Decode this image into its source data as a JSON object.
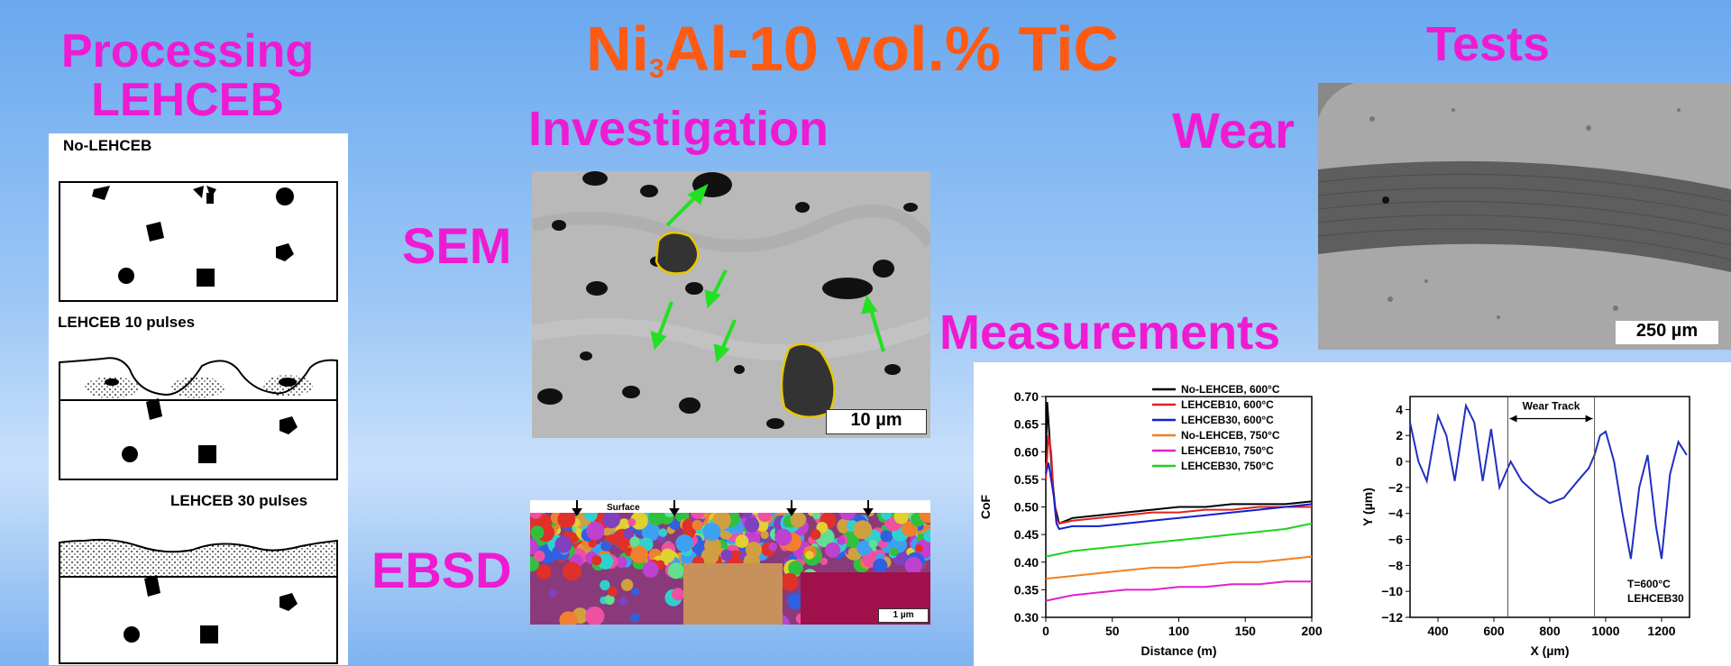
{
  "title": {
    "main_a": "Ni",
    "main_sub": "3",
    "main_b": "Al-10 vol.% TiC"
  },
  "headings": {
    "processing": "Processing",
    "lehceb": "LEHCEB",
    "investigation": "Investigation",
    "tests": "Tests",
    "sem": "SEM",
    "ebsd": "EBSD",
    "wear": "Wear",
    "measurements": "Measurements"
  },
  "schematic": {
    "no_lehceb": "No-LEHCEB",
    "lehceb10": "LEHCEB 10 pulses",
    "lehceb30": "LEHCEB 30 pulses"
  },
  "sem_scale": "10 µm",
  "ebsd": {
    "surface_label": "Surface",
    "scale": "1 µm"
  },
  "wear_scale": "250 µm",
  "colors": {
    "title": "#ff5a12",
    "headings": "#ee1bd3"
  },
  "chart_data": [
    {
      "type": "line",
      "xlabel": "Distance (m)",
      "ylabel": "CoF",
      "xlim": [
        0,
        200
      ],
      "ylim": [
        0.3,
        0.7
      ],
      "xticks": [
        0,
        50,
        100,
        150,
        200
      ],
      "yticks": [
        0.3,
        0.35,
        0.4,
        0.45,
        0.5,
        0.55,
        0.6,
        0.65,
        0.7
      ],
      "legend_position": "top-right",
      "series": [
        {
          "name": "No-LEHCEB, 600°C",
          "color": "#000000",
          "x": [
            0,
            1,
            3,
            5,
            7,
            10,
            20,
            40,
            60,
            80,
            100,
            120,
            140,
            160,
            180,
            200
          ],
          "y": [
            0.58,
            0.69,
            0.62,
            0.55,
            0.5,
            0.47,
            0.48,
            0.485,
            0.49,
            0.495,
            0.5,
            0.5,
            0.505,
            0.505,
            0.505,
            0.51
          ]
        },
        {
          "name": "LEHCEB10, 600°C",
          "color": "#e02020",
          "x": [
            0,
            2,
            4,
            6,
            8,
            10,
            20,
            40,
            60,
            80,
            100,
            120,
            140,
            160,
            180,
            200
          ],
          "y": [
            0.55,
            0.63,
            0.6,
            0.52,
            0.48,
            0.47,
            0.475,
            0.48,
            0.485,
            0.49,
            0.49,
            0.495,
            0.495,
            0.5,
            0.5,
            0.5
          ]
        },
        {
          "name": "LEHCEB30, 600°C",
          "color": "#1020d0",
          "x": [
            0,
            2,
            4,
            6,
            8,
            10,
            20,
            40,
            60,
            80,
            100,
            120,
            140,
            160,
            180,
            200
          ],
          "y": [
            0.56,
            0.58,
            0.55,
            0.52,
            0.47,
            0.46,
            0.465,
            0.465,
            0.47,
            0.475,
            0.48,
            0.485,
            0.49,
            0.495,
            0.5,
            0.505
          ]
        },
        {
          "name": "No-LEHCEB, 750°C",
          "color": "#f08020",
          "x": [
            0,
            20,
            40,
            60,
            80,
            100,
            120,
            140,
            160,
            180,
            200
          ],
          "y": [
            0.37,
            0.375,
            0.38,
            0.385,
            0.39,
            0.39,
            0.395,
            0.4,
            0.4,
            0.405,
            0.41
          ]
        },
        {
          "name": "LEHCEB10, 750°C",
          "color": "#e020d0",
          "x": [
            0,
            20,
            40,
            60,
            80,
            100,
            120,
            140,
            160,
            180,
            200
          ],
          "y": [
            0.33,
            0.34,
            0.345,
            0.35,
            0.35,
            0.355,
            0.355,
            0.36,
            0.36,
            0.365,
            0.365
          ]
        },
        {
          "name": "LEHCEB30, 750°C",
          "color": "#20d020",
          "x": [
            0,
            20,
            40,
            60,
            80,
            100,
            120,
            140,
            160,
            180,
            200
          ],
          "y": [
            0.41,
            0.42,
            0.425,
            0.43,
            0.435,
            0.44,
            0.445,
            0.45,
            0.455,
            0.46,
            0.47
          ]
        }
      ]
    },
    {
      "type": "line",
      "xlabel": "X (µm)",
      "ylabel": "Y (µm)",
      "xlim": [
        300,
        1300
      ],
      "ylim": [
        -12,
        5
      ],
      "xticks": [
        400,
        600,
        800,
        1000,
        1200
      ],
      "yticks": [
        4,
        2,
        0,
        -2,
        -4,
        -6,
        -8,
        -10,
        -12
      ],
      "annotation": "Wear Track",
      "track_bounds": [
        650,
        960
      ],
      "note_lines": [
        "T=600°C",
        "LEHCEB30"
      ],
      "series": [
        {
          "name": "",
          "color": "#2030c0",
          "x": [
            300,
            330,
            360,
            400,
            430,
            460,
            500,
            530,
            560,
            590,
            620,
            660,
            700,
            750,
            800,
            850,
            900,
            940,
            960,
            980,
            1000,
            1030,
            1060,
            1090,
            1120,
            1150,
            1180,
            1200,
            1230,
            1260,
            1290
          ],
          "y": [
            3,
            0,
            -1.5,
            3.5,
            2,
            -1.5,
            4.3,
            3,
            -1.5,
            2.5,
            -2,
            0,
            -1.5,
            -2.5,
            -3.2,
            -2.8,
            -1.5,
            -0.5,
            0.5,
            2,
            2.3,
            0,
            -4,
            -7.5,
            -2,
            0.5,
            -5,
            -7.5,
            -1,
            1.5,
            0.5
          ]
        }
      ]
    }
  ]
}
